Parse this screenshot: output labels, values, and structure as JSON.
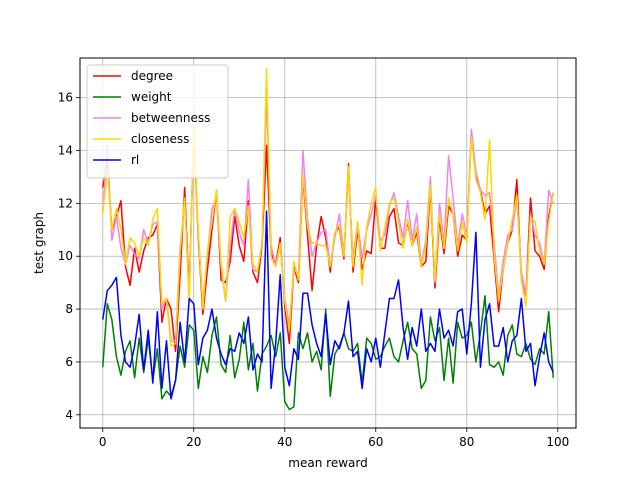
{
  "chart_data": {
    "type": "line",
    "xlabel": "mean reward",
    "ylabel": "test graph",
    "xlim": [
      -5,
      104
    ],
    "ylim": [
      3.5,
      17.5
    ],
    "xticks": [
      0,
      20,
      40,
      60,
      80,
      100
    ],
    "yticks": [
      4,
      6,
      8,
      10,
      12,
      14,
      16
    ],
    "grid": true,
    "legend_position": "top-left",
    "series": [
      {
        "name": "degree",
        "color": "#ff0000",
        "values": [
          12.6,
          13.5,
          11.0,
          11.5,
          12.1,
          9.6,
          8.9,
          10.3,
          9.4,
          10.2,
          10.7,
          10.8,
          11.2,
          7.5,
          8.4,
          8.0,
          6.4,
          9.3,
          12.6,
          8.6,
          14.8,
          10.7,
          7.8,
          9.5,
          11.0,
          12.5,
          9.1,
          9.0,
          9.8,
          11.5,
          10.4,
          9.8,
          12.1,
          9.4,
          9.0,
          10.4,
          14.2,
          10.1,
          9.7,
          10.7,
          8.1,
          6.7,
          9.6,
          9.0,
          13.0,
          10.8,
          8.7,
          10.4,
          11.5,
          10.7,
          9.4,
          10.9,
          11.1,
          9.9,
          13.5,
          9.4,
          11.0,
          9.5,
          10.2,
          10.1,
          12.2,
          10.3,
          10.3,
          11.5,
          11.8,
          10.5,
          10.4,
          11.3,
          10.4,
          10.9,
          9.6,
          9.8,
          12.6,
          8.8,
          11.4,
          10.1,
          11.9,
          11.6,
          10.0,
          10.8,
          10.6,
          14.7,
          13.0,
          12.5,
          11.6,
          11.9,
          9.9,
          7.9,
          9.5,
          10.5,
          11.0,
          12.9,
          9.1,
          8.5,
          12.2,
          10.2,
          10.0,
          9.5,
          11.5,
          12.4
        ]
      },
      {
        "name": "weight",
        "color": "#008000",
        "values": [
          5.8,
          8.2,
          7.6,
          6.2,
          5.5,
          6.4,
          6.8,
          5.4,
          6.9,
          5.6,
          6.9,
          5.3,
          6.5,
          4.6,
          4.9,
          4.7,
          5.3,
          6.6,
          5.8,
          7.4,
          7.2,
          5.0,
          6.2,
          5.6,
          7.0,
          7.7,
          5.9,
          5.6,
          7.0,
          5.4,
          6.1,
          7.5,
          5.7,
          6.7,
          4.9,
          6.3,
          6.6,
          7.0,
          6.2,
          7.1,
          4.5,
          4.2,
          4.3,
          7.1,
          6.5,
          7.1,
          6.0,
          6.4,
          5.7,
          8.0,
          4.7,
          6.3,
          6.6,
          7.1,
          6.5,
          6.4,
          6.7,
          5.2,
          6.9,
          6.7,
          6.1,
          6.2,
          6.6,
          6.9,
          6.2,
          6.0,
          6.8,
          7.5,
          6.5,
          6.3,
          5.0,
          5.3,
          7.7,
          6.8,
          7.3,
          5.3,
          6.9,
          5.2,
          7.5,
          6.9,
          7.0,
          7.5,
          6.0,
          7.1,
          8.5,
          5.9,
          5.8,
          6.0,
          5.5,
          7.0,
          7.4,
          6.3,
          6.2,
          6.7,
          6.1,
          5.9,
          6.5,
          6.3,
          7.9,
          5.4
        ]
      },
      {
        "name": "betweenness",
        "color": "#ee82ee",
        "values": [
          11.7,
          14.2,
          10.6,
          11.5,
          10.3,
          9.7,
          10.4,
          10.1,
          9.9,
          11.0,
          10.5,
          11.2,
          11.3,
          8.0,
          8.4,
          6.8,
          6.8,
          10.3,
          12.1,
          8.5,
          14.8,
          10.9,
          8.2,
          10.0,
          11.8,
          12.2,
          9.6,
          8.3,
          10.4,
          11.8,
          10.9,
          10.4,
          12.9,
          9.5,
          9.4,
          10.5,
          16.0,
          10.4,
          9.6,
          10.4,
          8.4,
          7.4,
          9.5,
          9.3,
          14.0,
          11.4,
          10.0,
          10.5,
          10.9,
          11.0,
          9.6,
          10.7,
          11.6,
          10.1,
          13.1,
          9.9,
          11.3,
          9.9,
          11.0,
          11.6,
          12.3,
          10.6,
          10.8,
          11.9,
          12.4,
          11.5,
          10.7,
          12.1,
          10.6,
          11.6,
          9.7,
          10.6,
          13.0,
          9.0,
          12.0,
          10.5,
          13.8,
          12.2,
          10.4,
          11.6,
          10.8,
          14.8,
          13.2,
          12.5,
          12.3,
          12.4,
          10.5,
          8.5,
          9.8,
          10.8,
          11.0,
          12.2,
          9.4,
          8.5,
          11.6,
          10.8,
          10.5,
          9.7,
          12.5,
          12.0
        ]
      },
      {
        "name": "closeness",
        "color": "#ffd700",
        "values": [
          11.6,
          13.3,
          11.0,
          11.8,
          11.0,
          9.7,
          10.7,
          10.5,
          10.0,
          10.7,
          10.4,
          11.4,
          11.8,
          8.2,
          8.4,
          6.6,
          6.7,
          10.1,
          12.2,
          8.2,
          15.0,
          10.9,
          8.0,
          10.2,
          11.3,
          12.5,
          9.8,
          8.3,
          11.5,
          11.8,
          11.3,
          10.7,
          11.9,
          9.7,
          9.4,
          10.5,
          17.1,
          9.9,
          9.6,
          10.5,
          8.3,
          7.2,
          9.8,
          9.1,
          13.1,
          11.1,
          10.5,
          10.5,
          10.4,
          10.4,
          9.6,
          10.9,
          11.2,
          10.0,
          13.4,
          9.6,
          11.3,
          8.9,
          11.1,
          12.0,
          12.6,
          10.2,
          11.1,
          12.0,
          12.2,
          11.3,
          10.3,
          11.4,
          10.4,
          11.1,
          9.6,
          10.4,
          12.7,
          9.1,
          11.6,
          10.3,
          12.2,
          11.6,
          10.2,
          11.3,
          10.5,
          14.5,
          12.9,
          12.4,
          11.4,
          14.4,
          10.1,
          8.3,
          9.5,
          10.5,
          11.4,
          12.3,
          9.1,
          8.1,
          11.5,
          11.3,
          10.2,
          9.7,
          11.3,
          12.4
        ]
      },
      {
        "name": "rl",
        "color": "#0000ff",
        "values": [
          7.6,
          8.7,
          8.9,
          9.2,
          7.0,
          6.0,
          5.8,
          6.6,
          7.8,
          5.7,
          7.2,
          5.2,
          7.9,
          5.0,
          6.8,
          4.6,
          5.3,
          7.5,
          6.0,
          8.4,
          8.2,
          5.9,
          6.9,
          7.2,
          8.0,
          6.9,
          6.3,
          5.9,
          6.5,
          6.4,
          7.1,
          6.7,
          7.7,
          5.7,
          6.3,
          6.0,
          11.7,
          5.0,
          6.7,
          9.3,
          5.8,
          5.1,
          6.5,
          6.1,
          8.6,
          8.6,
          7.4,
          6.7,
          6.2,
          7.8,
          5.9,
          6.8,
          6.5,
          7.1,
          8.3,
          6.2,
          6.4,
          5.0,
          6.5,
          6.0,
          6.9,
          5.8,
          7.1,
          8.4,
          8.4,
          9.1,
          7.3,
          6.1,
          7.3,
          6.6,
          8.0,
          6.4,
          6.7,
          6.4,
          8.0,
          6.9,
          7.2,
          6.6,
          7.9,
          8.0,
          6.3,
          8.2,
          10.9,
          5.8,
          7.6,
          8.2,
          6.6,
          6.6,
          7.3,
          6.0,
          6.8,
          7.0,
          8.4,
          6.4,
          6.7,
          5.1,
          6.2,
          7.1,
          6.0,
          5.6
        ]
      }
    ]
  }
}
